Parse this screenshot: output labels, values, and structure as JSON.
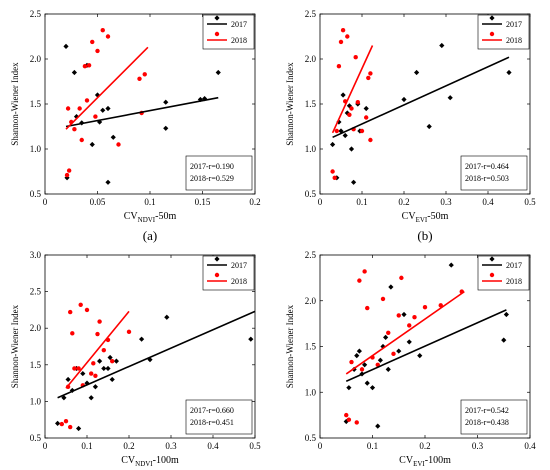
{
  "figure_panel_labels": [
    "(a)",
    "(b)",
    "(c)",
    "(d)"
  ],
  "chart_data": [
    {
      "type": "scatter",
      "panel_label": "(a)",
      "xlabel_main": "CV",
      "xlabel_sub": "NDVI",
      "xlabel_suffix": "-50m",
      "ylabel": "Shannon-Wiener Index",
      "xlim": [
        0,
        0.2
      ],
      "ylim": [
        0.5,
        2.5
      ],
      "xticks": [
        "0",
        "0.05",
        "0.1",
        "0.15",
        "0.2"
      ],
      "xtick_values": [
        0,
        0.05,
        0.1,
        0.15,
        0.2
      ],
      "yticks": [
        "0.5",
        "1.0",
        "1.5",
        "2.0",
        "2.5"
      ],
      "ytick_values": [
        0.5,
        1.0,
        1.5,
        2.0,
        2.5
      ],
      "legend": [
        {
          "label": "2017",
          "color": "#000000",
          "marker": "diamond"
        },
        {
          "label": "2018",
          "color": "#ff0000",
          "marker": "circle"
        }
      ],
      "stats": [
        "2017-r=0.190",
        "2018-r=0.529"
      ],
      "series": [
        {
          "name": "2017",
          "color": "#000000",
          "marker": "diamond",
          "points": [
            [
              0.02,
              2.14
            ],
            [
              0.021,
              0.68
            ],
            [
              0.028,
              1.85
            ],
            [
              0.03,
              1.36
            ],
            [
              0.035,
              1.29
            ],
            [
              0.04,
              1.93
            ],
            [
              0.045,
              1.05
            ],
            [
              0.05,
              1.6
            ],
            [
              0.052,
              1.3
            ],
            [
              0.055,
              1.43
            ],
            [
              0.06,
              0.63
            ],
            [
              0.06,
              1.45
            ],
            [
              0.065,
              1.13
            ],
            [
              0.115,
              1.52
            ],
            [
              0.115,
              1.23
            ],
            [
              0.148,
              1.55
            ],
            [
              0.152,
              1.56
            ],
            [
              0.162,
              2.39
            ],
            [
              0.165,
              1.85
            ]
          ],
          "trend": [
            [
              0.02,
              1.25
            ],
            [
              0.165,
              1.57
            ]
          ]
        },
        {
          "name": "2018",
          "color": "#ff0000",
          "marker": "circle",
          "points": [
            [
              0.021,
              0.71
            ],
            [
              0.022,
              1.45
            ],
            [
              0.023,
              0.76
            ],
            [
              0.025,
              1.3
            ],
            [
              0.028,
              1.22
            ],
            [
              0.033,
              1.45
            ],
            [
              0.035,
              1.1
            ],
            [
              0.038,
              1.92
            ],
            [
              0.04,
              1.54
            ],
            [
              0.042,
              1.93
            ],
            [
              0.045,
              2.19
            ],
            [
              0.048,
              1.36
            ],
            [
              0.05,
              2.09
            ],
            [
              0.055,
              2.32
            ],
            [
              0.06,
              2.25
            ],
            [
              0.07,
              1.05
            ],
            [
              0.09,
              1.78
            ],
            [
              0.092,
              1.4
            ],
            [
              0.095,
              1.83
            ]
          ],
          "trend": [
            [
              0.02,
              1.22
            ],
            [
              0.098,
              2.13
            ]
          ]
        }
      ]
    },
    {
      "type": "scatter",
      "panel_label": "(b)",
      "xlabel_main": "CV",
      "xlabel_sub": "EVI",
      "xlabel_suffix": "-50m",
      "ylabel": "Shannon-Wiener Index",
      "xlim": [
        0,
        0.5
      ],
      "ylim": [
        0.5,
        2.5
      ],
      "xticks": [
        "0",
        "0.1",
        "0.2",
        "0.3",
        "0.4",
        "0.5"
      ],
      "xtick_values": [
        0,
        0.1,
        0.2,
        0.3,
        0.4,
        0.5
      ],
      "yticks": [
        "0.5",
        "1.0",
        "1.5",
        "2.0",
        "2.5"
      ],
      "ytick_values": [
        0.5,
        1.0,
        1.5,
        2.0,
        2.5
      ],
      "legend": [
        {
          "label": "2017",
          "color": "#000000",
          "marker": "diamond"
        },
        {
          "label": "2018",
          "color": "#ff0000",
          "marker": "circle"
        }
      ],
      "stats": [
        "2017-r=0.464",
        "2018-r=0.503"
      ],
      "series": [
        {
          "name": "2017",
          "color": "#000000",
          "marker": "diamond",
          "points": [
            [
              0.03,
              1.05
            ],
            [
              0.04,
              0.68
            ],
            [
              0.045,
              1.3
            ],
            [
              0.05,
              1.2
            ],
            [
              0.055,
              1.6
            ],
            [
              0.06,
              1.15
            ],
            [
              0.065,
              1.4
            ],
            [
              0.07,
              1.48
            ],
            [
              0.075,
              1.0
            ],
            [
              0.08,
              0.63
            ],
            [
              0.09,
              1.5
            ],
            [
              0.095,
              1.2
            ],
            [
              0.11,
              1.45
            ],
            [
              0.2,
              1.55
            ],
            [
              0.23,
              1.85
            ],
            [
              0.26,
              1.25
            ],
            [
              0.29,
              2.15
            ],
            [
              0.31,
              1.57
            ],
            [
              0.43,
              2.39
            ],
            [
              0.45,
              1.85
            ]
          ],
          "trend": [
            [
              0.03,
              1.13
            ],
            [
              0.45,
              2.02
            ]
          ]
        },
        {
          "name": "2018",
          "color": "#ff0000",
          "marker": "circle",
          "points": [
            [
              0.03,
              0.75
            ],
            [
              0.035,
              0.68
            ],
            [
              0.04,
              1.2
            ],
            [
              0.045,
              1.92
            ],
            [
              0.05,
              2.19
            ],
            [
              0.055,
              2.32
            ],
            [
              0.06,
              1.53
            ],
            [
              0.065,
              2.25
            ],
            [
              0.07,
              1.38
            ],
            [
              0.075,
              1.45
            ],
            [
              0.08,
              1.22
            ],
            [
              0.085,
              2.02
            ],
            [
              0.09,
              1.52
            ],
            [
              0.1,
              1.2
            ],
            [
              0.11,
              1.35
            ],
            [
              0.115,
              1.79
            ],
            [
              0.12,
              1.84
            ],
            [
              0.12,
              1.1
            ]
          ],
          "trend": [
            [
              0.03,
              1.18
            ],
            [
              0.125,
              2.15
            ]
          ]
        }
      ]
    },
    {
      "type": "scatter",
      "panel_label": "(c)",
      "xlabel_main": "CV",
      "xlabel_sub": "NDVI",
      "xlabel_suffix": "-100m",
      "ylabel": "Shannon-Wiener Index",
      "xlim": [
        0,
        0.5
      ],
      "ylim": [
        0.5,
        3.0
      ],
      "xticks": [
        "0",
        "0.1",
        "0.2",
        "0.3",
        "0.4",
        "0.5"
      ],
      "xtick_values": [
        0,
        0.1,
        0.2,
        0.3,
        0.4,
        0.5
      ],
      "yticks": [
        "0.5",
        "1.0",
        "1.5",
        "2.0",
        "2.5",
        "3.0"
      ],
      "ytick_values": [
        0.5,
        1.0,
        1.5,
        2.0,
        2.5,
        3.0
      ],
      "legend": [
        {
          "label": "2017",
          "color": "#000000",
          "marker": "diamond"
        },
        {
          "label": "2018",
          "color": "#ff0000",
          "marker": "circle"
        }
      ],
      "stats": [
        "2017-r=0.660",
        "2018-r=0.451"
      ],
      "series": [
        {
          "name": "2017",
          "color": "#000000",
          "marker": "diamond",
          "points": [
            [
              0.03,
              0.7
            ],
            [
              0.045,
              1.05
            ],
            [
              0.055,
              1.3
            ],
            [
              0.065,
              1.15
            ],
            [
              0.075,
              1.45
            ],
            [
              0.08,
              0.63
            ],
            [
              0.09,
              1.38
            ],
            [
              0.1,
              1.25
            ],
            [
              0.11,
              1.05
            ],
            [
              0.12,
              1.2
            ],
            [
              0.13,
              1.55
            ],
            [
              0.14,
              1.45
            ],
            [
              0.15,
              1.45
            ],
            [
              0.155,
              1.6
            ],
            [
              0.16,
              1.3
            ],
            [
              0.17,
              1.55
            ],
            [
              0.23,
              1.85
            ],
            [
              0.25,
              1.57
            ],
            [
              0.29,
              2.15
            ],
            [
              0.4,
              2.87
            ],
            [
              0.49,
              1.85
            ]
          ],
          "trend": [
            [
              0.03,
              1.05
            ],
            [
              0.5,
              2.23
            ]
          ]
        },
        {
          "name": "2018",
          "color": "#ff0000",
          "marker": "circle",
          "points": [
            [
              0.04,
              0.69
            ],
            [
              0.05,
              0.73
            ],
            [
              0.055,
              1.2
            ],
            [
              0.06,
              0.65
            ],
            [
              0.06,
              2.22
            ],
            [
              0.065,
              1.93
            ],
            [
              0.07,
              1.45
            ],
            [
              0.08,
              1.45
            ],
            [
              0.085,
              2.32
            ],
            [
              0.09,
              1.22
            ],
            [
              0.1,
              2.25
            ],
            [
              0.11,
              1.38
            ],
            [
              0.115,
              1.52
            ],
            [
              0.12,
              1.35
            ],
            [
              0.125,
              1.92
            ],
            [
              0.13,
              2.09
            ],
            [
              0.14,
              1.7
            ],
            [
              0.15,
              1.84
            ],
            [
              0.16,
              1.55
            ],
            [
              0.2,
              1.95
            ]
          ],
          "trend": [
            [
              0.05,
              1.18
            ],
            [
              0.2,
              2.23
            ]
          ]
        }
      ]
    },
    {
      "type": "scatter",
      "panel_label": "(d)",
      "xlabel_main": "CV",
      "xlabel_sub": "EVI",
      "xlabel_suffix": "-100m",
      "ylabel": "Shannon-Wiener Index",
      "xlim": [
        0,
        0.4
      ],
      "ylim": [
        0.5,
        2.5
      ],
      "xticks": [
        "0",
        "0.1",
        "0.2",
        "0.3",
        "0.4"
      ],
      "xtick_values": [
        0,
        0.1,
        0.2,
        0.3,
        0.4
      ],
      "yticks": [
        "0.5",
        "1.0",
        "1.5",
        "2.0",
        "2.5"
      ],
      "ytick_values": [
        0.5,
        1.0,
        1.5,
        2.0,
        2.5
      ],
      "legend": [
        {
          "label": "2017",
          "color": "#000000",
          "marker": "diamond"
        },
        {
          "label": "2018",
          "color": "#ff0000",
          "marker": "circle"
        }
      ],
      "stats": [
        "2017-r=0.542",
        "2018-r=0.438"
      ],
      "series": [
        {
          "name": "2017",
          "color": "#000000",
          "marker": "diamond",
          "points": [
            [
              0.05,
              0.68
            ],
            [
              0.055,
              1.05
            ],
            [
              0.065,
              1.25
            ],
            [
              0.07,
              1.4
            ],
            [
              0.075,
              1.45
            ],
            [
              0.08,
              1.2
            ],
            [
              0.085,
              1.3
            ],
            [
              0.09,
              1.1
            ],
            [
              0.1,
              1.05
            ],
            [
              0.11,
              0.63
            ],
            [
              0.115,
              1.35
            ],
            [
              0.12,
              1.5
            ],
            [
              0.125,
              1.6
            ],
            [
              0.13,
              1.25
            ],
            [
              0.135,
              2.15
            ],
            [
              0.15,
              1.45
            ],
            [
              0.16,
              1.85
            ],
            [
              0.17,
              1.55
            ],
            [
              0.19,
              1.4
            ],
            [
              0.25,
              2.39
            ],
            [
              0.35,
              1.57
            ],
            [
              0.355,
              1.85
            ]
          ],
          "trend": [
            [
              0.05,
              1.12
            ],
            [
              0.355,
              1.9
            ]
          ]
        },
        {
          "name": "2018",
          "color": "#ff0000",
          "marker": "circle",
          "points": [
            [
              0.05,
              0.75
            ],
            [
              0.055,
              0.7
            ],
            [
              0.06,
              1.33
            ],
            [
              0.07,
              0.67
            ],
            [
              0.075,
              2.22
            ],
            [
              0.08,
              1.25
            ],
            [
              0.085,
              2.32
            ],
            [
              0.09,
              1.92
            ],
            [
              0.1,
              1.38
            ],
            [
              0.11,
              1.3
            ],
            [
              0.12,
              2.02
            ],
            [
              0.13,
              1.65
            ],
            [
              0.14,
              1.42
            ],
            [
              0.15,
              1.84
            ],
            [
              0.155,
              2.25
            ],
            [
              0.17,
              1.73
            ],
            [
              0.18,
              1.82
            ],
            [
              0.2,
              1.93
            ],
            [
              0.23,
              1.95
            ],
            [
              0.27,
              2.1
            ]
          ],
          "trend": [
            [
              0.05,
              1.2
            ],
            [
              0.275,
              2.1
            ]
          ]
        }
      ]
    }
  ]
}
